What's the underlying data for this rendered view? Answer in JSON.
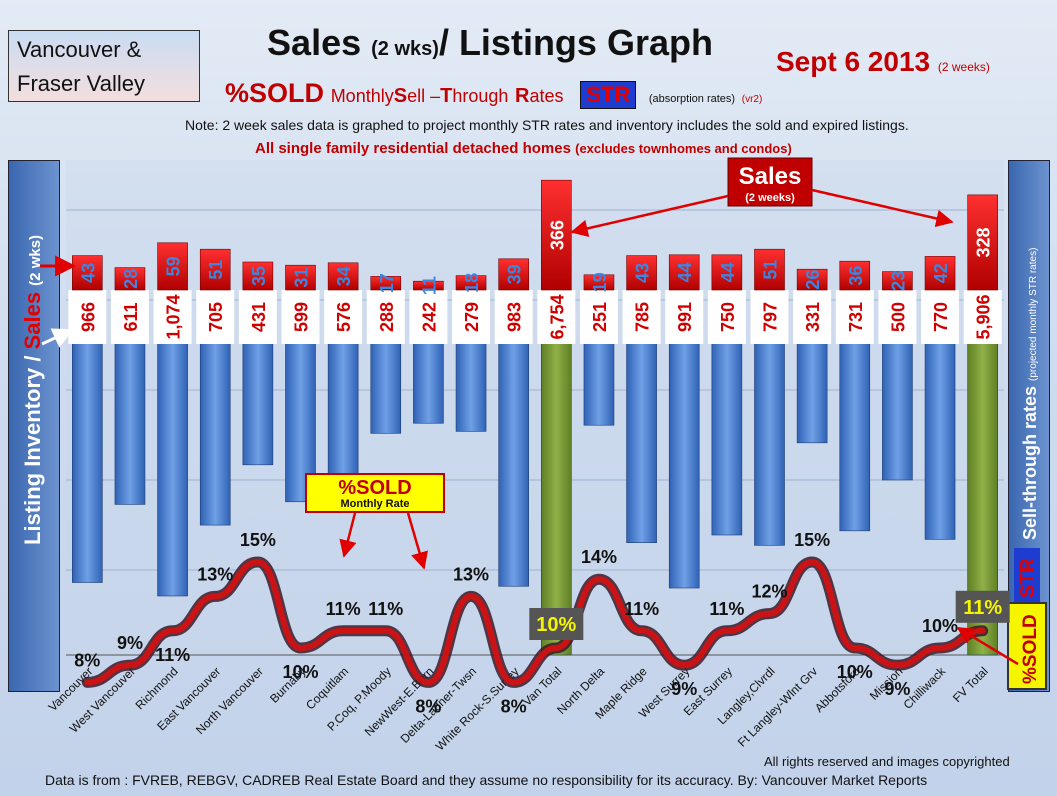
{
  "header": {
    "region": "Vancouver & Fraser Valley",
    "title_main": "Sales",
    "title_small": "(2 wks)",
    "title_rest": "/ Listings Graph",
    "date": "Sept 6 2013",
    "date_note": "(2 weeks)",
    "sold_big": "%SOLD",
    "sold_words": [
      "Monthly",
      "S",
      "ell –",
      "T",
      "hrough",
      "R",
      "ates"
    ],
    "str": "STR",
    "absorption": "(absorption rates)",
    "version": "(vr2)",
    "note": "Note: 2 week sales data is graphed to project monthly STR rates and inventory includes the sold and expired listings.",
    "subtitle_main": "All single family residential detached homes",
    "subtitle_small": "(excludes townhomes and condos)"
  },
  "left_axis": {
    "part1": "Listing Inventory /",
    "part2": "Sales",
    "part3": "(2 wks)"
  },
  "right_axis": {
    "main": "Sell-through rates",
    "small": "(projected monthly STR rates)",
    "str": "STR",
    "sold": "%SOLD"
  },
  "callouts": {
    "sales": "Sales",
    "sales_sub": "(2 weeks)",
    "sold": "%SOLD",
    "sold_sub": "Monthly Rate"
  },
  "footer": {
    "copyright": "All rights reserved and  images copyrighted",
    "source": "Data is  from : FVREB, REBGV, CADREB Real Estate Board and they assume no responsibility  for its accuracy. By: Vancouver Market Reports"
  },
  "colors": {
    "sales": "#e00000",
    "inventory": "#4a86d6",
    "total": "#7a9a3a",
    "line": "#d81010"
  },
  "chart_data": {
    "type": "bar",
    "categories": [
      "Vancouver",
      "West Vancouver",
      "Richmond",
      "East Vancouver",
      "North Vancouver",
      "Burnaby",
      "Coquitlam",
      "P.Coq, P.Moody",
      "NewWest-E.Burn",
      "Delta-Ladner-Twsn",
      "White Rock-S.Surrey",
      "Van Total",
      "North Delta",
      "Maple Ridge",
      "West Surrey",
      "East Surrey",
      "Langley,Clvrdl",
      "Ft Langley-Wlnt Grv",
      "Abbotsford",
      "Mission",
      "Chilliwack",
      "FV Total"
    ],
    "series": [
      {
        "name": "Sales",
        "values": [
          43,
          28,
          59,
          51,
          35,
          31,
          34,
          17,
          11,
          18,
          39,
          366,
          19,
          43,
          44,
          44,
          51,
          26,
          36,
          23,
          42,
          328
        ]
      },
      {
        "name": "Listing Inventory",
        "values": [
          966,
          611,
          1074,
          705,
          431,
          599,
          576,
          288,
          242,
          279,
          983,
          6754,
          251,
          785,
          991,
          750,
          797,
          331,
          731,
          500,
          770,
          5906
        ]
      },
      {
        "name": "%SOLD",
        "values": [
          8,
          9,
          11,
          13,
          15,
          10,
          11,
          11,
          8,
          13,
          8,
          10,
          14,
          11,
          9,
          11,
          12,
          15,
          10,
          9,
          10,
          11
        ]
      }
    ],
    "value_labels": {
      "sales": [
        "43",
        "28",
        "59",
        "51",
        "35",
        "31",
        "34",
        "17",
        "11",
        "18",
        "39",
        "366",
        "19",
        "43",
        "44",
        "44",
        "51",
        "26",
        "36",
        "23",
        "42",
        "328"
      ],
      "inventory": [
        "966",
        "611",
        "1,074",
        "705",
        "431",
        "599",
        "576",
        "288",
        "242",
        "279",
        "983",
        "6,754",
        "251",
        "785",
        "991",
        "750",
        "797",
        "331",
        "731",
        "500",
        "770",
        "5,906"
      ],
      "sold": [
        "8%",
        "9%",
        "11%",
        "13%",
        "15%",
        "10%",
        "11%",
        "11%",
        "8%",
        "13%",
        "8%",
        "10%",
        "14%",
        "11%",
        "9%",
        "11%",
        "12%",
        "15%",
        "10%",
        "9%",
        "10%",
        "11%"
      ]
    },
    "totals": [
      "Van Total",
      "FV Total"
    ],
    "grid": true
  }
}
